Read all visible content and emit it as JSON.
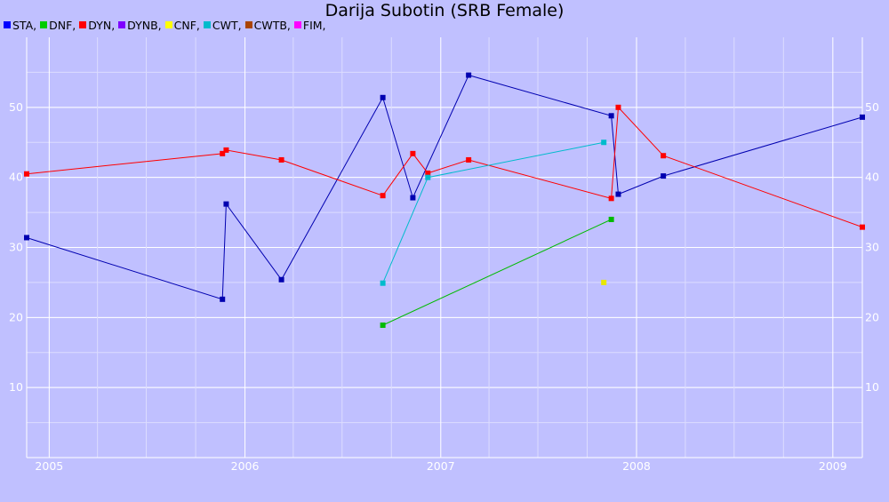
{
  "chart_data": {
    "type": "line",
    "title": "Darija Subotin (SRB Female)",
    "xlabel": "",
    "ylabel": "",
    "x_ticks": [
      "2005",
      "2006",
      "2007",
      "2008",
      "2009"
    ],
    "y_ticks": [
      10,
      20,
      30,
      40,
      50
    ],
    "xlim": [
      "2004-11-20",
      "2009-02-25"
    ],
    "ylim": [
      0,
      60
    ],
    "grid": true,
    "legend_position": "top-left",
    "legend": [
      {
        "label": "STA,",
        "color": "#0000ff"
      },
      {
        "label": "DNF,",
        "color": "#00cc00"
      },
      {
        "label": "DYN,",
        "color": "#ff0000"
      },
      {
        "label": "DYNB,",
        "color": "#7f00ff"
      },
      {
        "label": "CNF,",
        "color": "#ffff00"
      },
      {
        "label": "CWT,",
        "color": "#00bbcc"
      },
      {
        "label": "CWTB,",
        "color": "#aa4400"
      },
      {
        "label": "FIM,",
        "color": "#ff00ff"
      }
    ],
    "series": [
      {
        "name": "STA",
        "color": "#0000b0",
        "points": [
          {
            "x": "2004-11-20",
            "y": 31.4
          },
          {
            "x": "2005-11-20",
            "y": 22.6
          },
          {
            "x": "2005-11-27",
            "y": 36.2
          },
          {
            "x": "2006-03-10",
            "y": 25.4
          },
          {
            "x": "2006-09-15",
            "y": 51.4
          },
          {
            "x": "2006-11-10",
            "y": 37.1
          },
          {
            "x": "2007-02-22",
            "y": 54.6
          },
          {
            "x": "2007-11-15",
            "y": 48.8
          },
          {
            "x": "2007-11-28",
            "y": 37.6
          },
          {
            "x": "2008-02-20",
            "y": 40.2
          },
          {
            "x": "2009-02-25",
            "y": 48.6
          }
        ]
      },
      {
        "name": "DNF",
        "color": "#00bb00",
        "points": [
          {
            "x": "2006-09-15",
            "y": 18.9
          },
          {
            "x": "2007-11-15",
            "y": 34.0
          }
        ]
      },
      {
        "name": "DYN",
        "color": "#ff0000",
        "points": [
          {
            "x": "2004-11-20",
            "y": 40.5
          },
          {
            "x": "2005-11-20",
            "y": 43.4
          },
          {
            "x": "2005-11-27",
            "y": 43.9
          },
          {
            "x": "2006-03-10",
            "y": 42.5
          },
          {
            "x": "2006-09-15",
            "y": 37.4
          },
          {
            "x": "2006-11-10",
            "y": 43.4
          },
          {
            "x": "2006-12-08",
            "y": 40.6
          },
          {
            "x": "2007-02-22",
            "y": 42.5
          },
          {
            "x": "2007-11-15",
            "y": 37.0
          },
          {
            "x": "2007-11-28",
            "y": 50.0
          },
          {
            "x": "2008-02-20",
            "y": 43.1
          },
          {
            "x": "2009-02-25",
            "y": 32.9
          }
        ]
      },
      {
        "name": "CNF",
        "color": "#e8e800",
        "points": [
          {
            "x": "2007-11-01",
            "y": 25.0
          }
        ]
      },
      {
        "name": "CWT",
        "color": "#00bbcc",
        "points": [
          {
            "x": "2006-09-15",
            "y": 24.9
          },
          {
            "x": "2006-12-08",
            "y": 40.0
          },
          {
            "x": "2007-11-01",
            "y": 45.0
          }
        ]
      }
    ]
  }
}
